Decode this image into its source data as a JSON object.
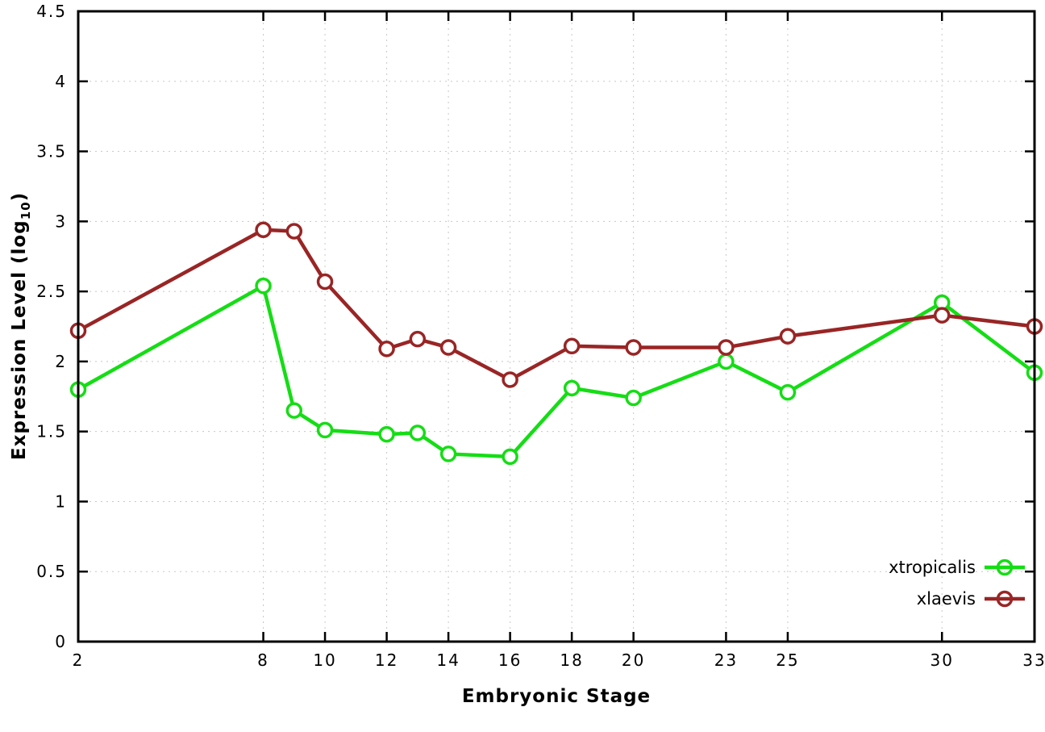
{
  "chart_data": {
    "type": "line",
    "title": "",
    "xlabel": "Embryonic Stage",
    "ylabel": "Expression Level (log10)",
    "ylabel_main": "Expression Level (log",
    "ylabel_sub": "10",
    "ylabel_close": ")",
    "xlim": [
      2,
      33
    ],
    "ylim": [
      0,
      4.5
    ],
    "grid": true,
    "legend_position": "bottom-right",
    "x_ticks": [
      2,
      8,
      10,
      12,
      14,
      16,
      18,
      20,
      23,
      25,
      30,
      33
    ],
    "x_tick_labels": [
      "2",
      "8",
      "10",
      "12",
      "14",
      "16",
      "18",
      "20",
      "23",
      "25",
      "30",
      "33"
    ],
    "y_ticks": [
      0,
      0.5,
      1,
      1.5,
      2,
      2.5,
      3,
      3.5,
      4,
      4.5
    ],
    "y_tick_labels": [
      "0",
      "0.5",
      "1",
      "1.5",
      "2",
      "2.5",
      "3",
      "3.5",
      "4",
      "4.5"
    ],
    "x": [
      2,
      8,
      9,
      10,
      12,
      13,
      14,
      16,
      18,
      20,
      23,
      25,
      30,
      33
    ],
    "series": [
      {
        "name": "xtropicalis",
        "color": "#15dd15",
        "values": [
          1.8,
          2.54,
          1.65,
          1.51,
          1.48,
          1.49,
          1.34,
          1.32,
          1.81,
          1.74,
          2.0,
          1.78,
          2.42,
          1.92
        ]
      },
      {
        "name": "xlaevis",
        "color": "#992525",
        "values": [
          2.22,
          2.94,
          2.93,
          2.57,
          2.09,
          2.16,
          2.1,
          1.87,
          2.11,
          2.1,
          2.1,
          2.18,
          2.33,
          2.25
        ]
      }
    ],
    "style": {
      "grid_color": "#c8c8c8",
      "border_color": "#000000",
      "marker_fill": "#ffffff"
    }
  }
}
